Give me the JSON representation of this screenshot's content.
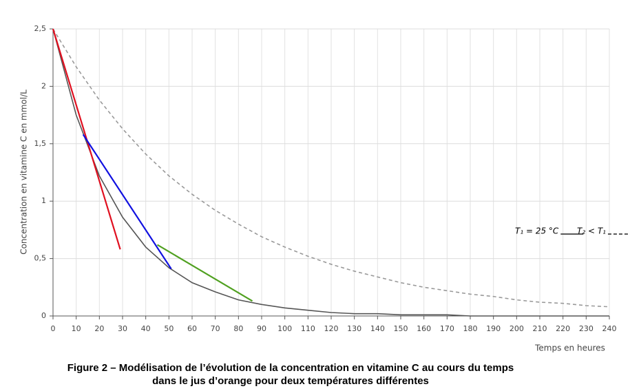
{
  "chart_data": {
    "type": "line",
    "title": [
      "Figure 2 – Modélisation de l’évolution de la concentration en vitamine C au cours du temps",
      "dans le jus d’orange pour deux températures différentes"
    ],
    "x_label": "Temps en heures",
    "y_label": "Concentration en vitamine C en mmol/L",
    "x": [
      0,
      10,
      20,
      30,
      40,
      50,
      60,
      70,
      80,
      90,
      100,
      110,
      120,
      130,
      140,
      150,
      160,
      170,
      180,
      190,
      200,
      210,
      220,
      230,
      240
    ],
    "series": [
      {
        "name": "T₁ = 25 °C",
        "color": "#555555",
        "dash": false,
        "values": [
          2.5,
          1.75,
          1.22,
          0.86,
          0.6,
          0.42,
          0.29,
          0.21,
          0.14,
          0.1,
          0.07,
          0.05,
          0.03,
          0.02,
          0.02,
          0.01,
          0.01,
          0.01,
          0,
          0,
          0,
          0,
          0,
          0,
          0
        ]
      },
      {
        "name": "T₂ < T₁",
        "color": "#999999",
        "dash": true,
        "values": [
          2.5,
          2.17,
          1.88,
          1.63,
          1.41,
          1.22,
          1.06,
          0.92,
          0.8,
          0.69,
          0.6,
          0.52,
          0.45,
          0.39,
          0.34,
          0.29,
          0.25,
          0.22,
          0.19,
          0.17,
          0.14,
          0.12,
          0.11,
          0.09,
          0.08
        ]
      }
    ],
    "tangents": [
      {
        "color": "#e01020",
        "x": [
          0,
          29
        ],
        "values": [
          2.5,
          0.58
        ]
      },
      {
        "color": "#1010e0",
        "x": [
          13,
          51
        ],
        "values": [
          1.58,
          0.41
        ]
      },
      {
        "color": "#50a020",
        "x": [
          45,
          86
        ],
        "values": [
          0.62,
          0.13
        ]
      }
    ],
    "xlim": [
      0,
      240
    ],
    "xticks": [
      0,
      10,
      20,
      30,
      40,
      50,
      60,
      70,
      80,
      90,
      100,
      110,
      120,
      130,
      140,
      150,
      160,
      170,
      180,
      190,
      200,
      210,
      220,
      230,
      240
    ],
    "ylim": [
      0,
      2.5
    ],
    "yticks": [
      0,
      {
        "value": 0.5,
        "label": "0,5"
      },
      1,
      {
        "value": 1.5,
        "label": "1,5"
      },
      2,
      {
        "value": 2.5,
        "label": "2,5"
      }
    ],
    "grid": true
  }
}
